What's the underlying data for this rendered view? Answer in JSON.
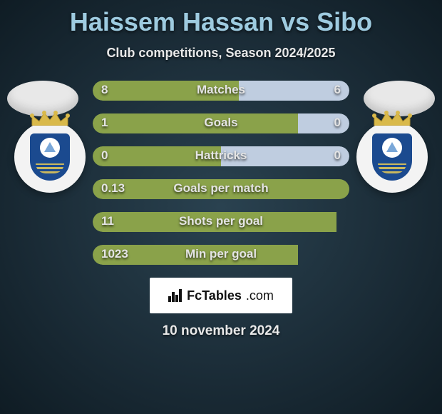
{
  "title": "Haissem Hassan vs Sibo",
  "subtitle": "Club competitions, Season 2024/2025",
  "footer": {
    "brand_main": "FcTables",
    "brand_tail": ".com",
    "date": "10 november 2024"
  },
  "colors": {
    "left_bar": "#8aa24a",
    "right_bar": "#bfcde0",
    "title_text": "#9ecbe0",
    "text_light": "#e4e4e4",
    "crest_blue": "#1b4a8f"
  },
  "stats": [
    {
      "label": "Matches",
      "left_val": "8",
      "right_val": "6",
      "left_pct": 57,
      "right_pct": 43
    },
    {
      "label": "Goals",
      "left_val": "1",
      "right_val": "0",
      "left_pct": 80,
      "right_pct": 20
    },
    {
      "label": "Hattricks",
      "left_val": "0",
      "right_val": "0",
      "left_pct": 50,
      "right_pct": 50
    },
    {
      "label": "Goals per match",
      "left_val": "0.13",
      "right_val": "",
      "left_pct": 100,
      "right_pct": 0
    },
    {
      "label": "Shots per goal",
      "left_val": "11",
      "right_val": "",
      "left_pct": 95,
      "right_pct": 0
    },
    {
      "label": "Min per goal",
      "left_val": "1023",
      "right_val": "",
      "left_pct": 80,
      "right_pct": 0
    }
  ]
}
